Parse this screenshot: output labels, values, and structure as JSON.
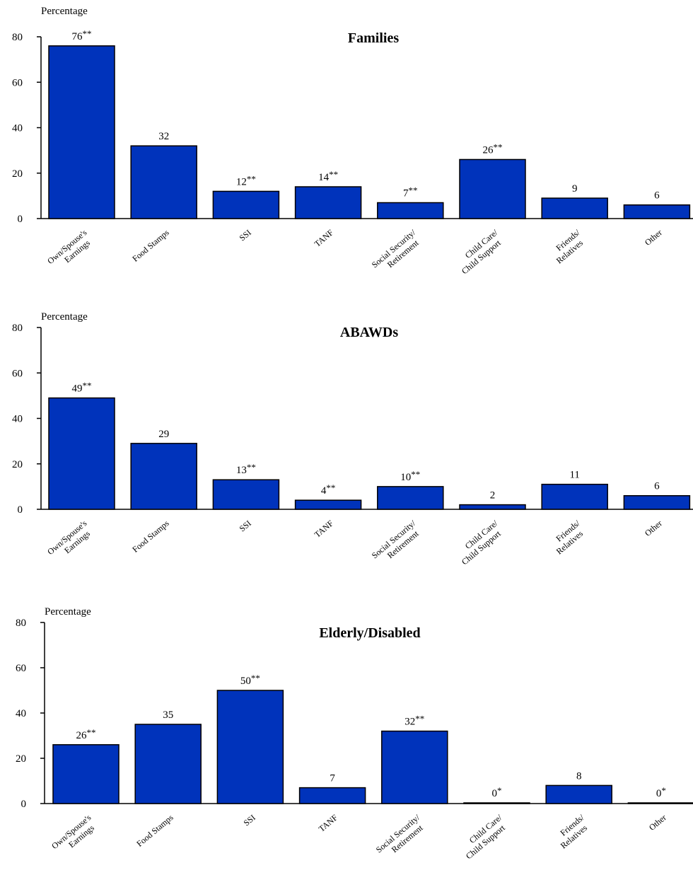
{
  "colors": {
    "bar": "#0033bb",
    "bar_stroke": "#000000",
    "axis": "#000000"
  },
  "chart_data": [
    {
      "type": "bar",
      "title": "Families",
      "ylabel": "Percentage",
      "ylim": [
        0,
        80
      ],
      "yticks": [
        "0",
        "20",
        "40",
        "60",
        "80"
      ],
      "categories": [
        [
          "Own/Spouse's",
          "Earnings"
        ],
        [
          "Food Stamps"
        ],
        [
          "SSI"
        ],
        [
          "TANF"
        ],
        [
          "Social Security/",
          "Retirement"
        ],
        [
          "Child Care/",
          "Child Support"
        ],
        [
          "Friends/",
          "Relatives"
        ],
        [
          "Other"
        ]
      ],
      "values": [
        76,
        32,
        12,
        14,
        7,
        26,
        9,
        6
      ],
      "significance": [
        "**",
        "",
        "**",
        "**",
        "**",
        "**",
        "",
        ""
      ]
    },
    {
      "type": "bar",
      "title": "ABAWDs",
      "ylabel": "Percentage",
      "ylim": [
        0,
        80
      ],
      "yticks": [
        "0",
        "20",
        "40",
        "60",
        "80"
      ],
      "categories": [
        [
          "Own/Spouse's",
          "Earnings"
        ],
        [
          "Food Stamps"
        ],
        [
          "SSI"
        ],
        [
          "TANF"
        ],
        [
          "Social Security/",
          "Retirement"
        ],
        [
          "Child Care/",
          "Child Support"
        ],
        [
          "Friends/",
          "Relatives"
        ],
        [
          "Other"
        ]
      ],
      "values": [
        49,
        29,
        13,
        4,
        10,
        2,
        11,
        6
      ],
      "significance": [
        "**",
        "",
        "**",
        "**",
        "**",
        "",
        "",
        ""
      ]
    },
    {
      "type": "bar",
      "title": "Elderly/Disabled",
      "ylabel": "Percentage",
      "ylim": [
        0,
        80
      ],
      "yticks": [
        "0",
        "20",
        "40",
        "60",
        "80"
      ],
      "categories": [
        [
          "Own/Spouse's",
          "Earnings"
        ],
        [
          "Food Stamps"
        ],
        [
          "SSI"
        ],
        [
          "TANF"
        ],
        [
          "Social Security/",
          "Retirement"
        ],
        [
          "Child Care/",
          "Child Support"
        ],
        [
          "Friends/",
          "Relatives"
        ],
        [
          "Other"
        ]
      ],
      "values": [
        26,
        35,
        50,
        7,
        32,
        0,
        8,
        0
      ],
      "significance": [
        "**",
        "",
        "**",
        "",
        "**",
        "*",
        "",
        "*"
      ]
    }
  ]
}
